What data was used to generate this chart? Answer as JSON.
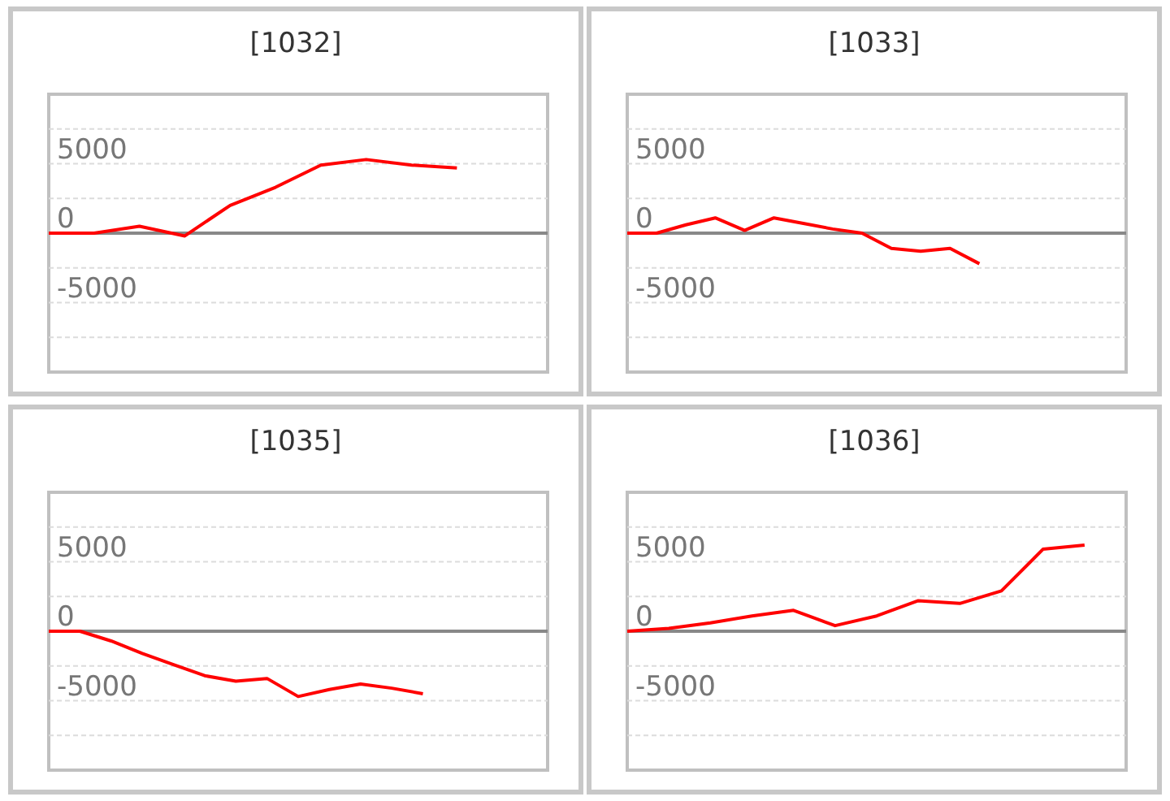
{
  "chart_data": [
    {
      "type": "line",
      "title": "[1032]",
      "categories": [
        null,
        null,
        null,
        null,
        null,
        null,
        null,
        null,
        null,
        null,
        null,
        null
      ],
      "ylim": [
        -10000,
        10000
      ],
      "yticks": [
        {
          "value": 7500,
          "label": null
        },
        5000,
        {
          "value": 2500,
          "label": null
        },
        0,
        {
          "value": -2500,
          "label": null
        },
        -5000,
        {
          "value": -7500,
          "label": null
        }
      ],
      "grid": "y",
      "marker": "none",
      "line_style": "solid",
      "series": [
        {
          "color": "#ff0000",
          "values": [
            0,
            0,
            500,
            -200,
            2000,
            3300,
            4900,
            5300,
            4900,
            4700,
            null,
            null
          ]
        }
      ]
    },
    {
      "type": "line",
      "title": "[1033]",
      "categories": [
        null,
        null,
        null,
        null,
        null,
        null,
        null,
        null,
        null,
        null,
        null,
        null,
        null,
        null,
        null,
        null,
        null,
        null
      ],
      "ylim": [
        -10000,
        10000
      ],
      "yticks": [
        {
          "value": 7500,
          "label": null
        },
        5000,
        {
          "value": 2500,
          "label": null
        },
        0,
        {
          "value": -2500,
          "label": null
        },
        -5000,
        {
          "value": -7500,
          "label": null
        }
      ],
      "grid": "y",
      "marker": "none",
      "line_style": "solid",
      "series": [
        {
          "color": "#ff0000",
          "values": [
            0,
            0,
            600,
            1100,
            200,
            1100,
            700,
            300,
            0,
            -1100,
            -1300,
            -1100,
            -2200,
            null,
            null,
            null,
            null,
            null
          ]
        }
      ]
    },
    {
      "type": "line",
      "title": "[1035]",
      "categories": [
        null,
        null,
        null,
        null,
        null,
        null,
        null,
        null,
        null,
        null,
        null,
        null,
        null,
        null,
        null,
        null,
        null
      ],
      "ylim": [
        -10000,
        10000
      ],
      "yticks": [
        {
          "value": 7500,
          "label": null
        },
        5000,
        {
          "value": 2500,
          "label": null
        },
        0,
        {
          "value": -2500,
          "label": null
        },
        -5000,
        {
          "value": -7500,
          "label": null
        }
      ],
      "grid": "y",
      "marker": "none",
      "line_style": "solid",
      "series": [
        {
          "color": "#ff0000",
          "values": [
            0,
            0,
            -700,
            -1600,
            -2400,
            -3200,
            -3600,
            -3400,
            -4700,
            -4200,
            -3800,
            -4100,
            -4500,
            null,
            null,
            null,
            null
          ]
        }
      ]
    },
    {
      "type": "line",
      "title": "[1036]",
      "categories": [
        null,
        null,
        null,
        null,
        null,
        null,
        null,
        null,
        null,
        null,
        null,
        null,
        null
      ],
      "ylim": [
        -10000,
        10000
      ],
      "yticks": [
        {
          "value": 7500,
          "label": null
        },
        5000,
        {
          "value": 2500,
          "label": null
        },
        0,
        {
          "value": -2500,
          "label": null
        },
        -5000,
        {
          "value": -7500,
          "label": null
        }
      ],
      "grid": "y",
      "marker": "none",
      "line_style": "solid",
      "series": [
        {
          "color": "#ff0000",
          "values": [
            0,
            200,
            600,
            1100,
            1500,
            400,
            1100,
            2200,
            2000,
            2900,
            5900,
            6200,
            null
          ]
        }
      ]
    }
  ]
}
